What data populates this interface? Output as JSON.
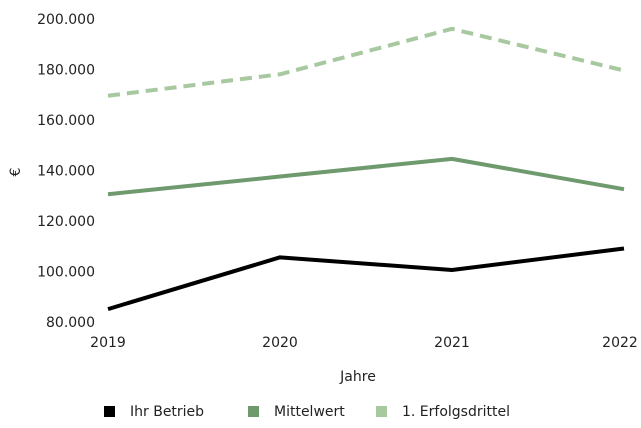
{
  "chart_data": {
    "type": "line",
    "categories": [
      "2019",
      "2020",
      "2021",
      "2022"
    ],
    "series": [
      {
        "name": "Ihr Betrieb",
        "color": "#000000",
        "dash": false,
        "values": [
          85500,
          106000,
          101000,
          109500
        ]
      },
      {
        "name": "Mittelwert",
        "color": "#6e9a6e",
        "dash": false,
        "values": [
          131000,
          138000,
          145000,
          133000
        ]
      },
      {
        "name": "1. Erfolgsdrittel",
        "color": "#a8c8a0",
        "dash": true,
        "values": [
          170000,
          178500,
          196500,
          180000
        ]
      }
    ],
    "ylim": [
      80000,
      200000
    ],
    "yticks": [
      {
        "value": 80000,
        "label": "80.000"
      },
      {
        "value": 100000,
        "label": "100.000"
      },
      {
        "value": 120000,
        "label": "120.000"
      },
      {
        "value": 140000,
        "label": "140.000"
      },
      {
        "value": 160000,
        "label": "160.000"
      },
      {
        "value": 180000,
        "label": "180.000"
      },
      {
        "value": 200000,
        "label": "200.000"
      }
    ],
    "ylabel": "€",
    "xlabel": "Jahre",
    "grid": false,
    "legend": "bottom"
  }
}
